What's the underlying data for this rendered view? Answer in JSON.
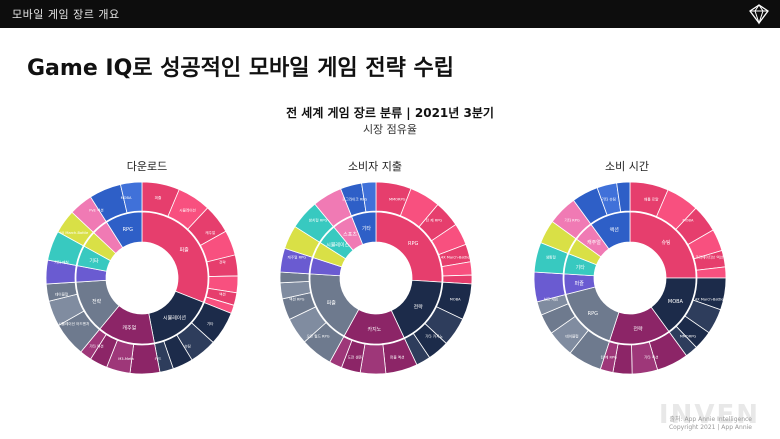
{
  "header": {
    "breadcrumb": "모바일 게임 장르 개요"
  },
  "page": {
    "title": "Game IQ로 성공적인 모바일 게임 전략 수립"
  },
  "figure": {
    "title": "전 세계 게임 장르 분류 | 2021년 3분기",
    "subtitle": "시장 점유율"
  },
  "footer": {
    "source": "출처: App Annie Intelligence",
    "copyright": "Copyright 2021 | App Annie",
    "watermark": "INVEN"
  },
  "colors": {
    "pink": "#e63e6d",
    "navy": "#1c2b4a",
    "purple": "#8c2567",
    "slate": "#6e7a8e",
    "blue": "#2e5fc7",
    "teal": "#38c9c0",
    "yellow": "#d9e046",
    "violet": "#6a5bd1",
    "lightpink": "#f07ab4",
    "green": "#2e9e56"
  },
  "chart_data": [
    {
      "type": "pie",
      "title": "다운로드",
      "inner": [
        {
          "label": "퍼즐",
          "value": 31,
          "color": "#e63e6d"
        },
        {
          "label": "시뮬레이션",
          "value": 16,
          "color": "#1c2b4a"
        },
        {
          "label": "캐주얼",
          "value": 14,
          "color": "#8c2567"
        },
        {
          "label": "전략",
          "value": 13,
          "color": "#6e7a8e"
        },
        {
          "label": "액션",
          "value": 4,
          "color": "#6a5bd1"
        },
        {
          "label": "기타",
          "value": 5,
          "color": "#38c9c0"
        },
        {
          "label": "슈팅",
          "value": 4,
          "color": "#d9e046"
        },
        {
          "label": "카드",
          "value": 4,
          "color": "#f07ab4"
        },
        {
          "label": "RPG",
          "value": 9,
          "color": "#2e5fc7"
        }
      ],
      "labels": [
        "퍼즐",
        "시뮬레이션",
        "캐주얼",
        "전략",
        "액션",
        "기타",
        "슈팅",
        "카드",
        "M3-Meta",
        "기타 액션",
        "시뮬레이션 어드벤처",
        "테이블형",
        "기타 매칭",
        "4X March-Battle",
        "PvE 액션",
        "MOBA"
      ]
    },
    {
      "type": "pie",
      "title": "소비자 지출",
      "inner": [
        {
          "label": "RPG",
          "value": 26,
          "color": "#e63e6d"
        },
        {
          "label": "전략",
          "value": 17,
          "color": "#1c2b4a"
        },
        {
          "label": "카지노",
          "value": 15,
          "color": "#8c2567"
        },
        {
          "label": "퍼즐",
          "value": 18,
          "color": "#6e7a8e"
        },
        {
          "label": "액션",
          "value": 4,
          "color": "#6a5bd1"
        },
        {
          "label": "슈팅",
          "value": 4,
          "color": "#d9e046"
        },
        {
          "label": "시뮬레이션",
          "value": 5,
          "color": "#38c9c0"
        },
        {
          "label": "스포츠",
          "value": 5,
          "color": "#f07ab4"
        },
        {
          "label": "기타",
          "value": 6,
          "color": "#2e5fc7"
        }
      ],
      "labels": [
        "MMORPG",
        "턴 제 RPG",
        "4X March-Battle",
        "MOBA",
        "기타 카지노",
        "퍼즐 액션",
        "도전 생존",
        "오픈 월드 RPG",
        "액션 RPG",
        "캐주얼 RPG",
        "방치형 RPG",
        "로그라이크 RPG"
      ]
    },
    {
      "type": "pie",
      "title": "소비 시간",
      "inner": [
        {
          "label": "슈팅",
          "value": 25,
          "color": "#e63e6d"
        },
        {
          "label": "MOBA",
          "value": 15,
          "color": "#1c2b4a"
        },
        {
          "label": "전략",
          "value": 15,
          "color": "#8c2567"
        },
        {
          "label": "RPG",
          "value": 16,
          "color": "#6e7a8e"
        },
        {
          "label": "퍼즐",
          "value": 5,
          "color": "#6a5bd1"
        },
        {
          "label": "기타",
          "value": 5,
          "color": "#38c9c0"
        },
        {
          "label": "카드",
          "value": 4,
          "color": "#d9e046"
        },
        {
          "label": "캐주얼",
          "value": 5,
          "color": "#f07ab4"
        },
        {
          "label": "액션",
          "value": 10,
          "color": "#2e5fc7"
        }
      ],
      "labels": [
        "배틀 로얄",
        "MOBA",
        "크리에이티브 액션",
        "4X March-Battle",
        "MMORPG",
        "기타 액션",
        "턴 제 RPG",
        "테이블형",
        "보드 게임",
        "생활형",
        "기타 RPG",
        "기타 슈팅"
      ]
    }
  ]
}
